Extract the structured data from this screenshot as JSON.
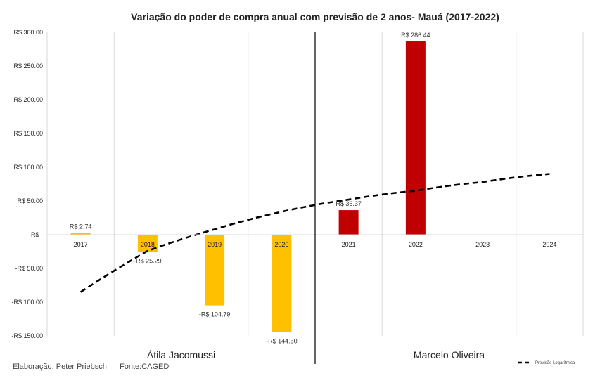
{
  "chart_data": {
    "type": "bar",
    "title": "Variação do poder de compra anual com previsão de 2 anos- Mauá (2017-2022)",
    "categories": [
      "2017",
      "2018",
      "2019",
      "2020",
      "2021",
      "2022",
      "2023",
      "2024"
    ],
    "values": [
      2.74,
      -25.29,
      -104.79,
      -144.5,
      36.37,
      286.44,
      null,
      null
    ],
    "data_labels": [
      "R$ 2.74",
      "-R$ 25.29",
      "-R$ 104.79",
      "-R$ 144.50",
      "R$ 36.37",
      "R$ 286.44",
      "",
      ""
    ],
    "bar_colors": [
      "#FFC000",
      "#FFC000",
      "#FFC000",
      "#FFC000",
      "#C00000",
      "#C00000",
      "#C00000",
      "#C00000"
    ],
    "ylim": [
      -150,
      300
    ],
    "yticks": [
      300,
      250,
      200,
      150,
      100,
      50,
      0,
      -50,
      -100,
      -150
    ],
    "ytick_labels": [
      "R$ 300.00",
      "R$ 250.00",
      "R$ 200.00",
      "R$ 150.00",
      "R$ 100.00",
      "R$ 50.00",
      "R$ -",
      "-R$ 50.00",
      "-R$ 100.00",
      "-R$ 150.00"
    ],
    "grid": true,
    "trendline": {
      "name": "Previsão Logarítmica",
      "type": "logarithmic",
      "style": "dashed",
      "color": "#000000",
      "x": [
        2017,
        2018,
        2019,
        2020,
        2021,
        2022,
        2023,
        2024
      ],
      "values": [
        -85,
        -24,
        8,
        34,
        52,
        65,
        78,
        90
      ]
    },
    "groups": [
      {
        "label": "Átila Jacomussi",
        "categories": [
          "2017",
          "2018",
          "2019",
          "2020"
        ]
      },
      {
        "label": "Marcelo Oliveira",
        "categories": [
          "2021",
          "2022",
          "2023",
          "2024"
        ]
      }
    ],
    "legend_position": "bottom-right"
  },
  "footer": {
    "credit": "Elaboração: Peter Priebsch",
    "source": "Fonte:CAGED"
  }
}
